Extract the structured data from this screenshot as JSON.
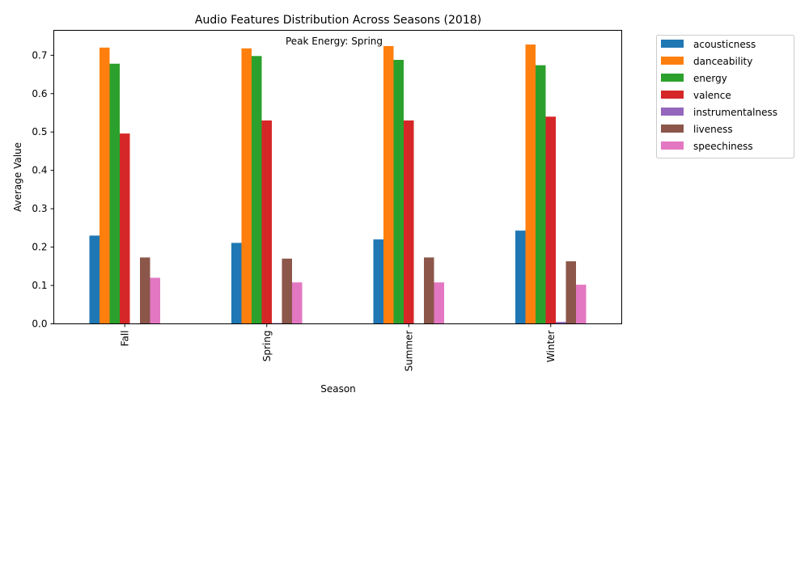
{
  "chart_data": {
    "type": "bar",
    "title": "Audio Features Distribution Across Seasons (2018)",
    "annotation": "Peak Energy: Spring",
    "xlabel": "Season",
    "ylabel": "Average Value",
    "categories": [
      "Fall",
      "Spring",
      "Summer",
      "Winter"
    ],
    "ylim": [
      0,
      0.765
    ],
    "yticks": [
      "0.0",
      "0.1",
      "0.2",
      "0.3",
      "0.4",
      "0.5",
      "0.6",
      "0.7"
    ],
    "legend_position": "outside top-right",
    "grid": false,
    "series": [
      {
        "name": "acousticness",
        "color": "#1f77b4",
        "values": [
          0.23,
          0.211,
          0.22,
          0.243
        ]
      },
      {
        "name": "danceability",
        "color": "#ff7f0e",
        "values": [
          0.72,
          0.718,
          0.724,
          0.728
        ]
      },
      {
        "name": "energy",
        "color": "#2ca02c",
        "values": [
          0.678,
          0.698,
          0.688,
          0.674
        ]
      },
      {
        "name": "valence",
        "color": "#d62728",
        "values": [
          0.496,
          0.53,
          0.53,
          0.54
        ]
      },
      {
        "name": "instrumentalness",
        "color": "#9467bd",
        "values": [
          0.001,
          0.002,
          0.001,
          0.005
        ]
      },
      {
        "name": "liveness",
        "color": "#8c564b",
        "values": [
          0.173,
          0.17,
          0.173,
          0.163
        ]
      },
      {
        "name": "speechiness",
        "color": "#e377c2",
        "values": [
          0.12,
          0.108,
          0.108,
          0.102
        ]
      }
    ]
  }
}
